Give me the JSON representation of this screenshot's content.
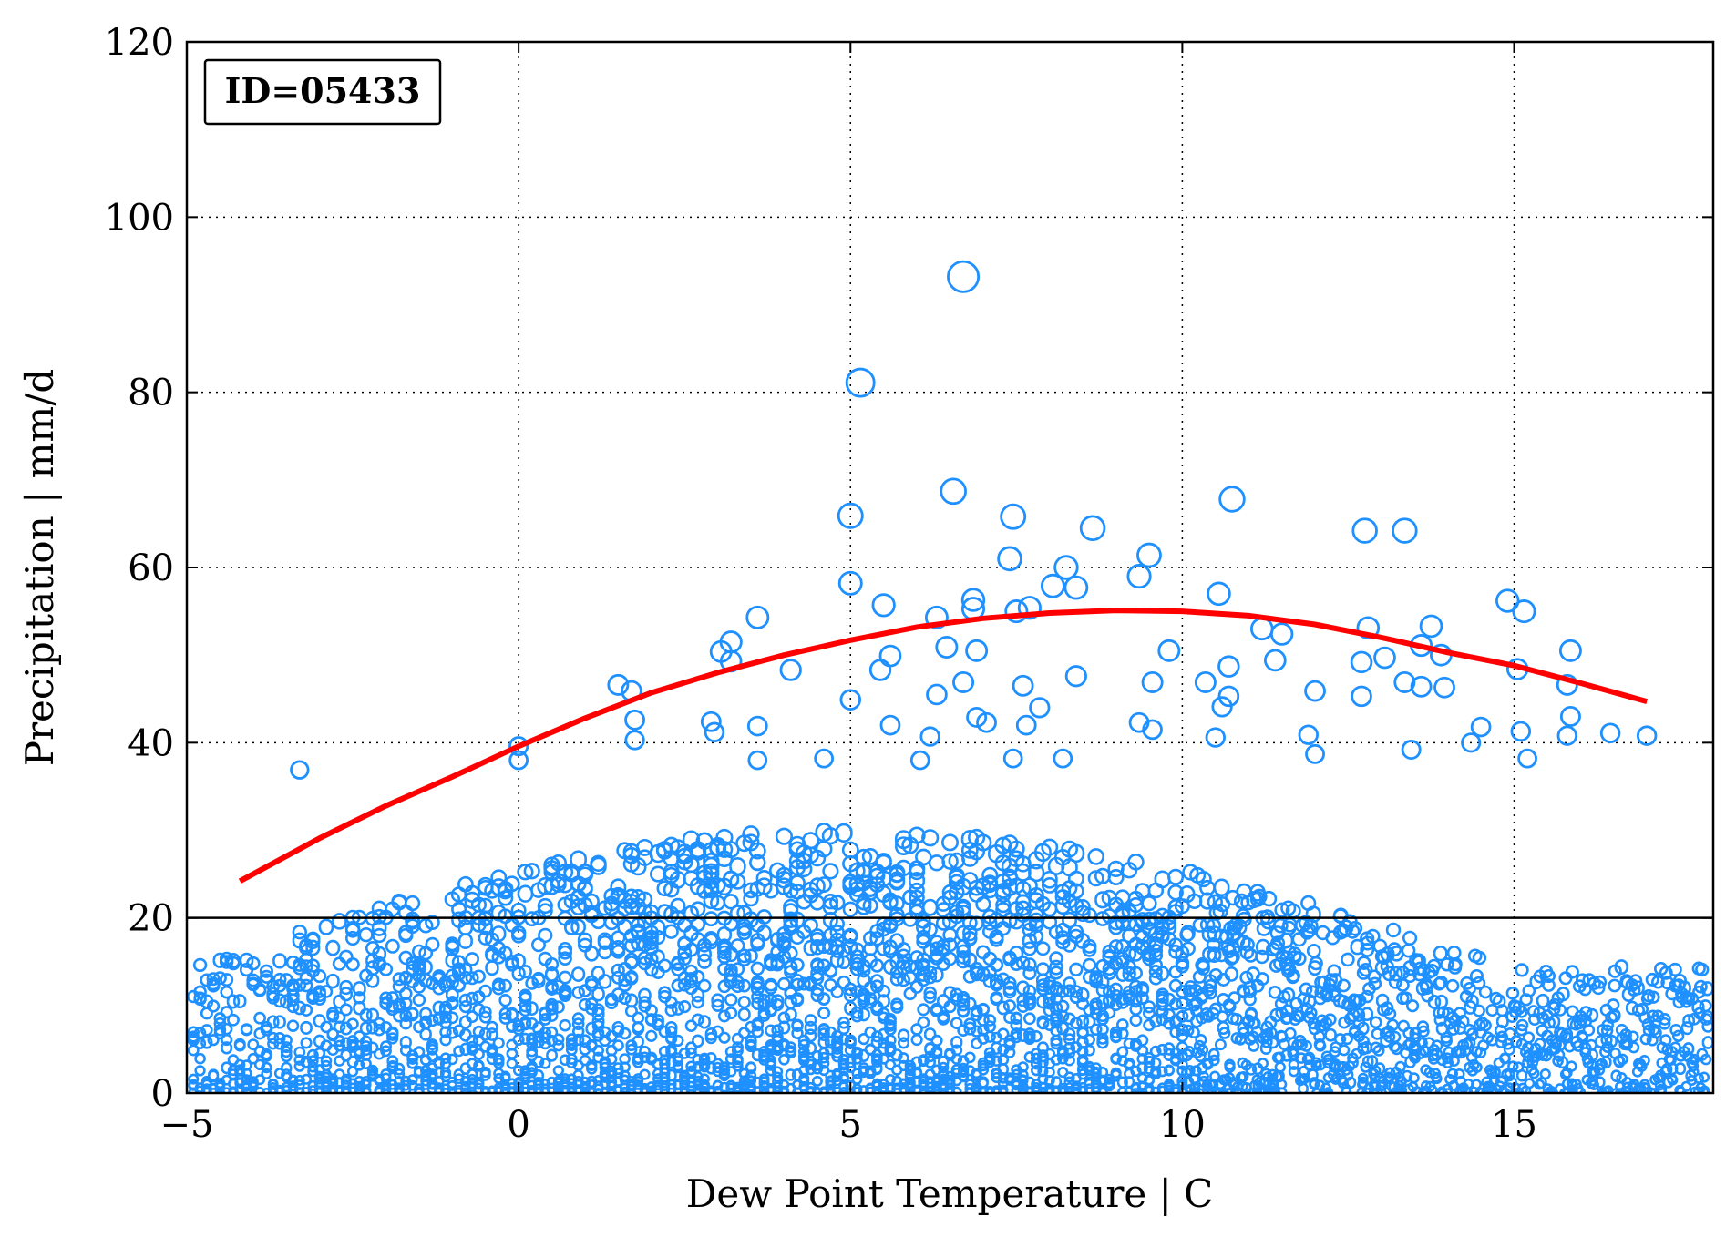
{
  "chart_data": {
    "type": "scatter",
    "annotation": "ID=05433",
    "xlabel": "Dew Point Temperature | C",
    "ylabel": "Precipitation | mm/d",
    "xlim": [
      -5,
      18
    ],
    "ylim": [
      0,
      120
    ],
    "xticks": [
      "−5",
      "0",
      "5",
      "10",
      "15"
    ],
    "xtick_values": [
      -5,
      0,
      5,
      10,
      15
    ],
    "yticks": [
      "0",
      "20",
      "40",
      "60",
      "80",
      "100",
      "120"
    ],
    "ytick_values": [
      0,
      20,
      40,
      60,
      80,
      100,
      120
    ],
    "grid": true,
    "marker_color": "#1e90ff",
    "fit_color": "#ff0000",
    "threshold_line": 20,
    "highlight_points": [
      [
        6.7,
        93.2
      ],
      [
        5.15,
        81.1
      ],
      [
        6.55,
        68.7
      ],
      [
        10.75,
        67.8
      ],
      [
        5.0,
        65.9
      ],
      [
        7.45,
        65.8
      ],
      [
        8.65,
        64.5
      ],
      [
        12.75,
        64.2
      ],
      [
        13.35,
        64.2
      ],
      [
        9.5,
        61.4
      ],
      [
        7.4,
        61.0
      ],
      [
        8.25,
        60.0
      ],
      [
        9.35,
        59.0
      ],
      [
        5.0,
        58.2
      ],
      [
        8.05,
        57.9
      ],
      [
        8.4,
        57.7
      ],
      [
        10.55,
        57.0
      ],
      [
        6.85,
        56.3
      ],
      [
        14.9,
        56.2
      ],
      [
        5.5,
        55.7
      ],
      [
        7.7,
        55.4
      ],
      [
        6.85,
        55.3
      ],
      [
        15.15,
        55.0
      ],
      [
        7.5,
        55.0
      ],
      [
        3.6,
        54.3
      ],
      [
        6.3,
        54.3
      ],
      [
        11.2,
        53.0
      ],
      [
        13.75,
        53.3
      ],
      [
        12.8,
        53.1
      ],
      [
        11.5,
        52.4
      ],
      [
        3.2,
        51.5
      ],
      [
        6.45,
        50.9
      ],
      [
        13.6,
        51.1
      ],
      [
        3.05,
        50.4
      ],
      [
        9.8,
        50.5
      ],
      [
        15.85,
        50.5
      ],
      [
        6.9,
        50.5
      ],
      [
        5.6,
        49.9
      ],
      [
        13.05,
        49.7
      ],
      [
        13.9,
        50.0
      ],
      [
        10.7,
        48.7
      ],
      [
        3.2,
        49.3
      ],
      [
        11.4,
        49.4
      ],
      [
        12.7,
        49.2
      ],
      [
        5.45,
        48.3
      ],
      [
        15.05,
        48.4
      ],
      [
        4.1,
        48.3
      ],
      [
        8.4,
        47.6
      ],
      [
        6.7,
        46.9
      ],
      [
        10.35,
        46.9
      ],
      [
        9.55,
        46.9
      ],
      [
        13.35,
        46.9
      ],
      [
        1.5,
        46.6
      ],
      [
        7.6,
        46.5
      ],
      [
        13.6,
        46.4
      ],
      [
        13.95,
        46.3
      ],
      [
        15.8,
        46.6
      ],
      [
        1.7,
        45.9
      ],
      [
        12.0,
        45.9
      ],
      [
        6.3,
        45.5
      ],
      [
        12.7,
        45.3
      ],
      [
        5.0,
        44.9
      ],
      [
        10.7,
        45.3
      ],
      [
        10.6,
        44.1
      ],
      [
        7.85,
        44.0
      ],
      [
        2.9,
        42.4
      ],
      [
        1.75,
        42.6
      ],
      [
        6.9,
        42.9
      ],
      [
        9.35,
        42.3
      ],
      [
        7.05,
        42.3
      ],
      [
        15.85,
        43.0
      ],
      [
        9.55,
        41.5
      ],
      [
        5.6,
        42.0
      ],
      [
        7.65,
        42.0
      ],
      [
        3.6,
        41.9
      ],
      [
        14.5,
        41.8
      ],
      [
        16.45,
        41.1
      ],
      [
        15.1,
        41.3
      ],
      [
        10.5,
        40.6
      ],
      [
        17.0,
        40.8
      ],
      [
        2.95,
        41.2
      ],
      [
        15.8,
        40.8
      ],
      [
        11.9,
        40.9
      ],
      [
        14.35,
        40.0
      ],
      [
        6.2,
        40.7
      ],
      [
        1.75,
        40.3
      ],
      [
        -3.3,
        36.9
      ],
      [
        0.0,
        39.6
      ],
      [
        0.0,
        38.0
      ],
      [
        8.2,
        38.2
      ],
      [
        12.0,
        38.7
      ],
      [
        13.45,
        39.2
      ],
      [
        7.45,
        38.2
      ],
      [
        15.2,
        38.2
      ],
      [
        4.6,
        38.2
      ],
      [
        3.6,
        38.0
      ],
      [
        6.05,
        38.0
      ]
    ],
    "fit_curve": [
      [
        -4.2,
        24.2
      ],
      [
        -3,
        29.1
      ],
      [
        -2,
        32.8
      ],
      [
        -1,
        36.1
      ],
      [
        0,
        39.6
      ],
      [
        1,
        42.8
      ],
      [
        2,
        45.7
      ],
      [
        3,
        48.0
      ],
      [
        4,
        50.0
      ],
      [
        5,
        51.7
      ],
      [
        6,
        53.2
      ],
      [
        7,
        54.2
      ],
      [
        8,
        54.8
      ],
      [
        9,
        55.1
      ],
      [
        10,
        55.0
      ],
      [
        11,
        54.5
      ],
      [
        12,
        53.5
      ],
      [
        13,
        52.0
      ],
      [
        14,
        50.3
      ],
      [
        15,
        48.8
      ],
      [
        16,
        46.8
      ],
      [
        17,
        44.7
      ]
    ]
  }
}
